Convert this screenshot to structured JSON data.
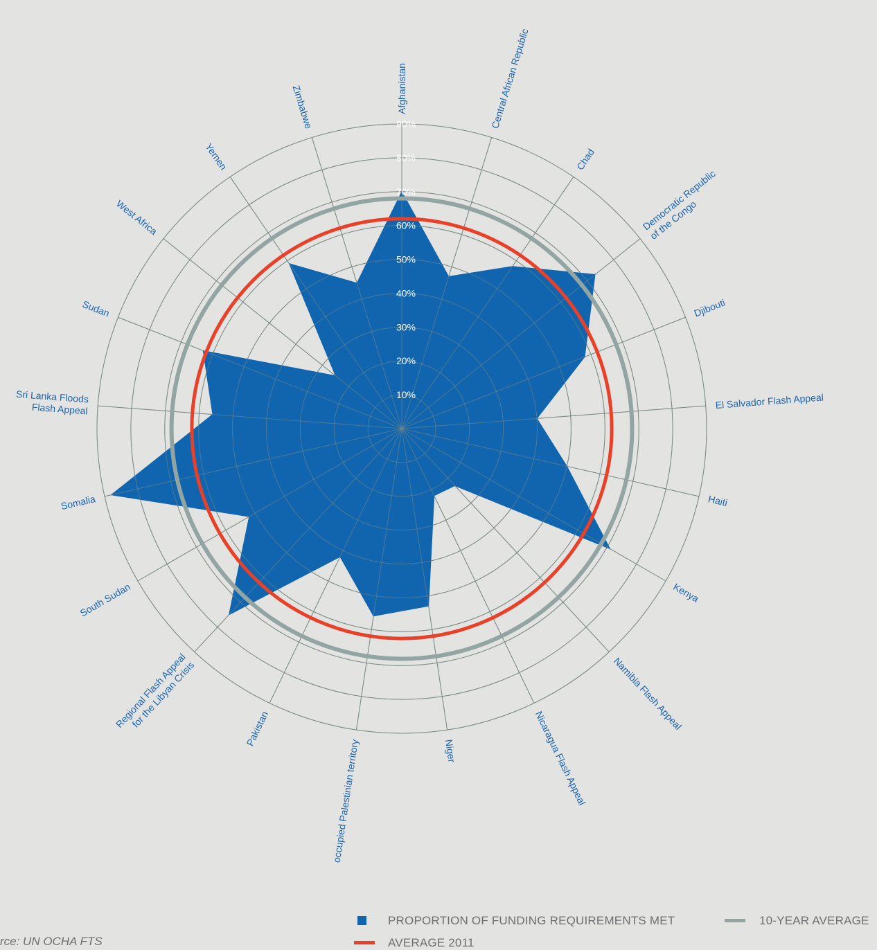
{
  "chart_data": {
    "type": "radar",
    "categories": [
      "Afghanistan",
      "Central African Republic",
      "Chad",
      "Democratic Republic\nof the Congo",
      "Djibouti",
      "El Salvador Flash Appeal",
      "Haiti",
      "Kenya",
      "Namibia Flash Appeal",
      "Nicaragua Flash Appeal",
      "Niger",
      "occupied Palestinian territory",
      "Pakistan",
      "Regional Flash Appeal\nfor the Libyan Crisis",
      "South Sudan",
      "Somalia",
      "Sri Lanka Floods\nFlash Appeal",
      "Sudan",
      "West Africa",
      "Yemen",
      "Zimbabwe"
    ],
    "values": [
      70,
      47,
      58,
      73,
      58,
      40,
      50,
      71,
      23,
      22,
      53,
      56,
      42,
      75,
      52,
      88,
      56,
      63,
      25,
      59,
      45
    ],
    "rlim": [
      0,
      90
    ],
    "r_ticks": [
      "10%",
      "20%",
      "30%",
      "40%",
      "50%",
      "60%",
      "70%",
      "80%",
      "90%"
    ],
    "series": [
      {
        "name": "PROPORTION OF FUNDING REQUIREMENTS MET",
        "color": "#1065ae"
      },
      {
        "name": "10-YEAR AVERAGE",
        "value": 68,
        "color": "#92a5a3"
      },
      {
        "name": "AVERAGE 2011",
        "value": 62,
        "color": "#e8412a"
      }
    ],
    "grid": true
  },
  "legend": {
    "funding_label": "PROPORTION OF FUNDING REQUIREMENTS MET",
    "tenyear_label": "10-YEAR AVERAGE",
    "avg2011_label": "AVERAGE 2011"
  },
  "source": "rce: UN OCHA FTS",
  "colors": {
    "background": "#e3e4e2",
    "grid": "#7c8a85",
    "label_text": "#1b64ae",
    "tick_text": "#ffffff"
  }
}
